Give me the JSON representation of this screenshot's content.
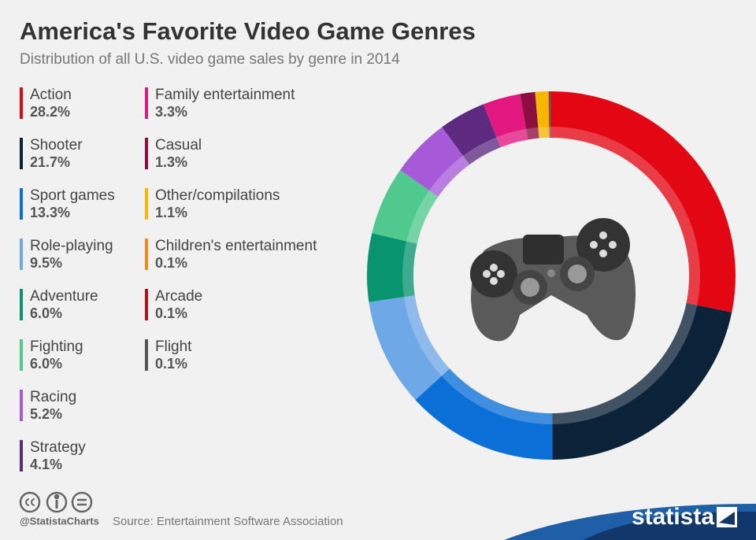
{
  "chart_data": {
    "type": "donut",
    "title": "America's Favorite Video Game Genres",
    "subtitle": "Distribution of all U.S. video game sales by genre in 2014",
    "categories": [
      "Action",
      "Shooter",
      "Sport games",
      "Role-playing",
      "Adventure",
      "Fighting",
      "Racing",
      "Strategy",
      "Family entertainment",
      "Casual",
      "Other/compilations",
      "Children's entertainment",
      "Arcade",
      "Flight"
    ],
    "values": [
      28.2,
      21.7,
      13.3,
      9.5,
      6.0,
      6.0,
      5.2,
      4.1,
      3.3,
      1.3,
      1.1,
      0.1,
      0.1,
      0.1
    ],
    "value_labels": [
      "28.2%",
      "21.7%",
      "13.3%",
      "9.5%",
      "6.0%",
      "6.0%",
      "5.2%",
      "4.1%",
      "3.3%",
      "1.3%",
      "1.1%",
      "0.1%",
      "0.1%",
      "0.1%"
    ],
    "colors": [
      "#e30613",
      "#0b2239",
      "#0b6fd8",
      "#6fa8e6",
      "#07946f",
      "#50c98f",
      "#a65ad8",
      "#5d2a80",
      "#e2177f",
      "#8b0e3f",
      "#f5b700",
      "#f28b17",
      "#b3141c",
      "#555555"
    ],
    "credit": "@StatistaCharts",
    "source": "Source: Entertainment Software Association",
    "brand": "statista"
  }
}
